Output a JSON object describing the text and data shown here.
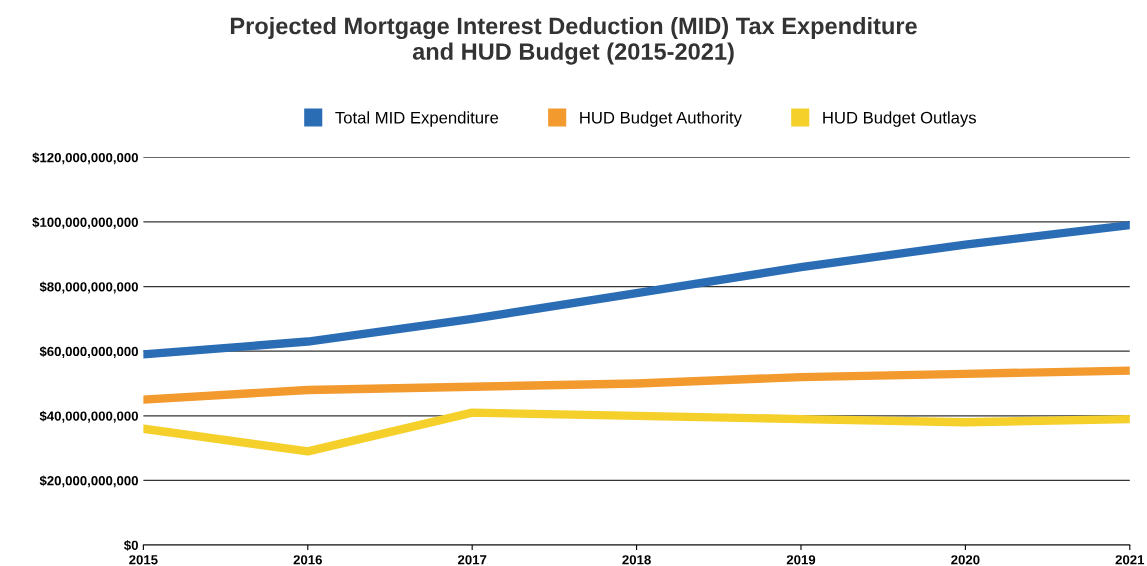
{
  "chart_data": {
    "type": "line",
    "title": "Projected Mortgage Interest Deduction (MID) Tax Expenditure\nand HUD Budget (2015-2021)",
    "x": [
      2015,
      2016,
      2017,
      2018,
      2019,
      2020,
      2021
    ],
    "series": [
      {
        "name": "Total MID Expenditure",
        "color": "#2a6db5",
        "values": [
          59000000000,
          63000000000,
          70000000000,
          78000000000,
          86000000000,
          93000000000,
          99000000000
        ]
      },
      {
        "name": "HUD Budget Authority",
        "color": "#f29a2e",
        "values": [
          45000000000,
          48000000000,
          49000000000,
          50000000000,
          52000000000,
          53000000000,
          54000000000
        ]
      },
      {
        "name": "HUD Budget Outlays",
        "color": "#f6d02a",
        "values": [
          36000000000,
          29000000000,
          41000000000,
          40000000000,
          39000000000,
          38000000000,
          39000000000
        ]
      }
    ],
    "xlim": [
      2015,
      2021
    ],
    "xticks": [
      2015,
      2016,
      2017,
      2018,
      2019,
      2020,
      2021
    ],
    "ylim": [
      0,
      120000000000
    ],
    "yticks": [
      {
        "value": 0,
        "label": "$0"
      },
      {
        "value": 20000000000,
        "label": "$20,000,000,000"
      },
      {
        "value": 40000000000,
        "label": "$40,000,000,000"
      },
      {
        "value": 60000000000,
        "label": "$60,000,000,000"
      },
      {
        "value": 80000000000,
        "label": "$80,000,000,000"
      },
      {
        "value": 100000000000,
        "label": "$100,000,000,000"
      },
      {
        "value": 120000000000,
        "label": "$120,000,000,000"
      }
    ],
    "grid": "y",
    "legend": "top",
    "marker": "none",
    "line_style": "solid"
  }
}
